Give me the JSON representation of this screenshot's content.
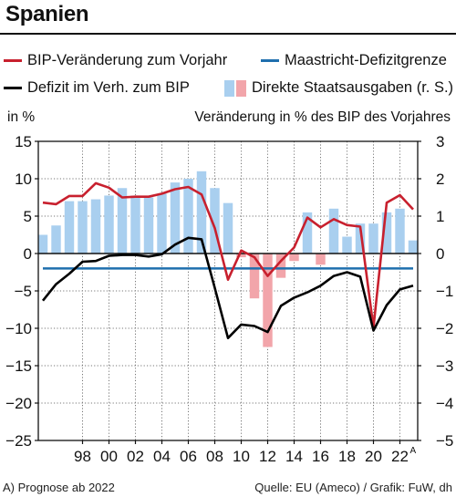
{
  "title": "Spanien",
  "legend": [
    {
      "label": "BIP-Veränderung zum Vorjahr",
      "type": "line",
      "color": "#c8202e"
    },
    {
      "label": "Maastricht-Defizitgrenze",
      "type": "line",
      "color": "#1f6fae"
    },
    {
      "label": "Defizit im Verh. zum BIP",
      "type": "line",
      "color": "#000000"
    },
    {
      "label": "Direkte Staatsausgaben (r. S.)",
      "type": "bars",
      "colors": [
        "#a9cfef",
        "#f2a5aa"
      ]
    }
  ],
  "left_unit": "in %",
  "right_unit": "Veränderung in % des BIP des Vorjahres",
  "footnote": "A) Prognose ab 2022",
  "source": "Quelle: EU (Ameco) / Grafik: FuW, dh",
  "chart_data": {
    "type": "bar+line",
    "x": [
      1995,
      1996,
      1997,
      1998,
      1999,
      2000,
      2001,
      2002,
      2003,
      2004,
      2005,
      2006,
      2007,
      2008,
      2009,
      2010,
      2011,
      2012,
      2013,
      2014,
      2015,
      2016,
      2017,
      2018,
      2019,
      2020,
      2021,
      2022,
      2023
    ],
    "xtick_labels": [
      "98",
      "00",
      "02",
      "04",
      "06",
      "08",
      "10",
      "12",
      "14",
      "16",
      "18",
      "20",
      "22"
    ],
    "xtick_years": [
      1998,
      2000,
      2002,
      2004,
      2006,
      2008,
      2010,
      2012,
      2014,
      2016,
      2018,
      2020,
      2022
    ],
    "xtick_footnote": "A",
    "left_axis": {
      "ylim": [
        -25,
        15
      ],
      "ticks": [
        "15",
        "10",
        "5",
        "0",
        "−5",
        "−10",
        "−15",
        "−20",
        "−25"
      ],
      "tick_values": [
        15,
        10,
        5,
        0,
        -5,
        -10,
        -15,
        -20,
        -25
      ]
    },
    "right_axis": {
      "ylim": [
        -5,
        3
      ],
      "ticks": [
        "3",
        "2",
        "1",
        "0",
        "−1",
        "−2",
        "−3",
        "−4",
        "−5"
      ],
      "tick_values": [
        3,
        2,
        1,
        0,
        -1,
        -2,
        -3,
        -4,
        -5
      ]
    },
    "maastricht_limit": -2,
    "series": [
      {
        "name": "BIP-Veränderung zum Vorjahr",
        "axis": "left",
        "color": "#c8202e",
        "values": [
          6.8,
          6.6,
          7.7,
          7.7,
          9.4,
          8.8,
          7.5,
          7.6,
          7.6,
          8.0,
          8.6,
          8.9,
          7.9,
          3.4,
          -3.5,
          0.4,
          -0.5,
          -3.0,
          -1.0,
          0.8,
          4.8,
          3.5,
          4.6,
          3.8,
          3.6,
          -9.9,
          6.8,
          7.8,
          5.9
        ]
      },
      {
        "name": "Defizit im Verh. zum BIP",
        "axis": "left",
        "color": "#000000",
        "values": [
          -6.3,
          -4.1,
          -2.7,
          -1.1,
          -1.0,
          -0.3,
          -0.2,
          -0.2,
          -0.4,
          -0.1,
          1.2,
          2.1,
          1.9,
          -4.6,
          -11.3,
          -9.5,
          -9.7,
          -10.5,
          -7.0,
          -5.9,
          -5.2,
          -4.3,
          -3.0,
          -2.5,
          -3.1,
          -10.3,
          -6.9,
          -4.8,
          -4.3
        ]
      },
      {
        "name": "Direkte Staatsausgaben (r. S.)",
        "axis": "right",
        "type": "bar",
        "values": [
          0.5,
          0.75,
          1.4,
          1.4,
          1.45,
          1.55,
          1.75,
          1.55,
          1.5,
          1.6,
          1.9,
          2.0,
          2.2,
          1.75,
          1.35,
          -0.1,
          -1.2,
          -2.5,
          -0.65,
          -0.2,
          1.1,
          -0.3,
          1.2,
          0.45,
          0.8,
          0.8,
          1.1,
          1.2,
          0.35
        ]
      }
    ]
  }
}
